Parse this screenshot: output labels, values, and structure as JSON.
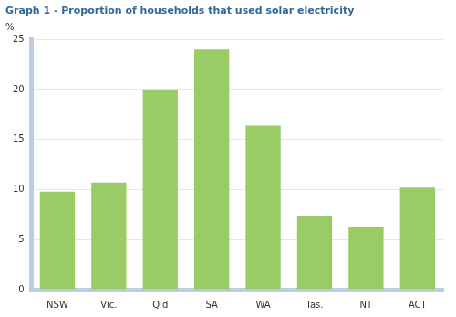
{
  "chart_data": {
    "type": "bar",
    "title": "Graph 1 - Proportion of households that used solar electricity",
    "y_label": "%",
    "categories": [
      "NSW",
      "Vic.",
      "Qld",
      "SA",
      "WA",
      "Tas.",
      "NT",
      "ACT"
    ],
    "values": [
      9.8,
      10.7,
      19.9,
      24.0,
      16.4,
      7.4,
      6.2,
      10.2
    ],
    "color": "#99cc66",
    "ylim": [
      0,
      25
    ],
    "yticks": [
      0,
      5,
      10,
      15,
      20,
      25
    ],
    "grid": true
  }
}
